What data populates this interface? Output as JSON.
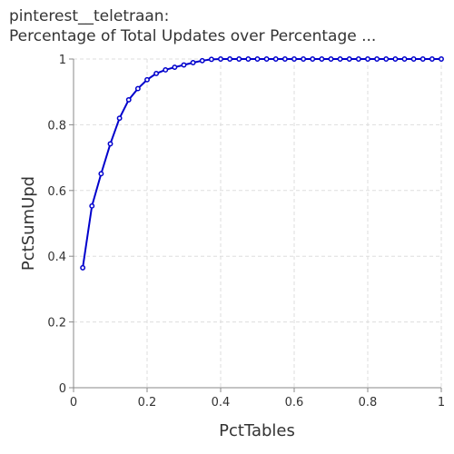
{
  "chart_data": {
    "type": "line",
    "title": "pinterest__teletraan:",
    "subtitle": "Percentage of Total Updates over Percentage ...",
    "xlabel": "PctTables",
    "ylabel": "PctSumUpd",
    "xlim": [
      0,
      1
    ],
    "ylim": [
      0,
      1
    ],
    "x_ticks": [
      "0",
      "0.2",
      "0.4",
      "0.6",
      "0.8",
      "1"
    ],
    "y_ticks": [
      "0",
      "0.2",
      "0.4",
      "0.6",
      "0.8",
      "1"
    ],
    "grid": true,
    "line_color": "#0000cc",
    "series": [
      {
        "x": [
          0.025,
          0.05,
          0.075,
          0.1,
          0.125,
          0.15,
          0.175,
          0.2,
          0.225,
          0.25,
          0.275,
          0.3,
          0.325,
          0.35,
          0.375,
          0.4,
          0.425,
          0.45,
          0.475,
          0.5,
          0.525,
          0.55,
          0.575,
          0.6,
          0.625,
          0.65,
          0.675,
          0.7,
          0.725,
          0.75,
          0.775,
          0.8,
          0.825,
          0.85,
          0.875,
          0.9,
          0.925,
          0.95,
          0.975,
          1.0
        ],
        "y": [
          0.365,
          0.553,
          0.651,
          0.742,
          0.82,
          0.876,
          0.91,
          0.937,
          0.956,
          0.967,
          0.975,
          0.982,
          0.989,
          0.995,
          0.999,
          1,
          1,
          1,
          1,
          1,
          1,
          1,
          1,
          1,
          1,
          1,
          1,
          1,
          1,
          1,
          1,
          1,
          1,
          1,
          1,
          1,
          1,
          1,
          1,
          1
        ]
      }
    ]
  }
}
